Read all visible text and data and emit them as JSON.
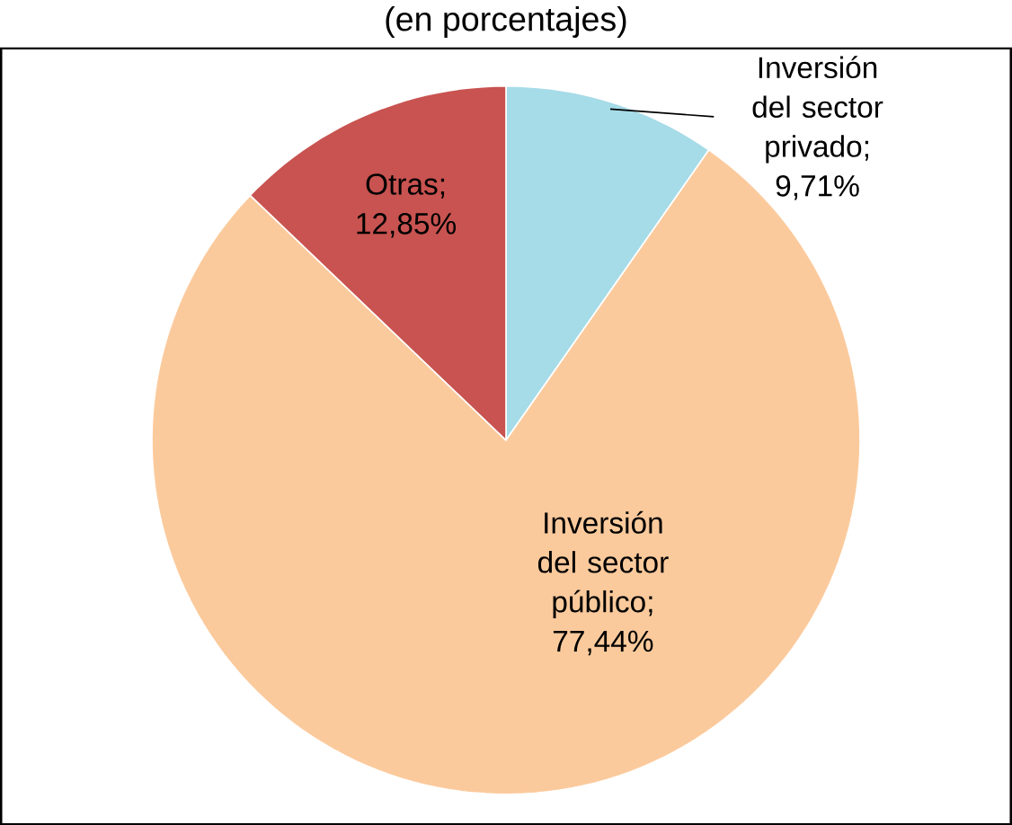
{
  "chart_data": {
    "type": "pie",
    "subtitle": "(en porcentajes)",
    "categories": [
      "Inversión del sector privado",
      "Inversión del sector público",
      "Otras"
    ],
    "values": [
      9.71,
      77.44,
      12.85
    ],
    "colors": [
      "#a6dbe8",
      "#fbca9c",
      "#c85350"
    ],
    "value_labels": [
      "; 9,71%",
      "; 77,44%",
      "; 12,85%"
    ]
  }
}
